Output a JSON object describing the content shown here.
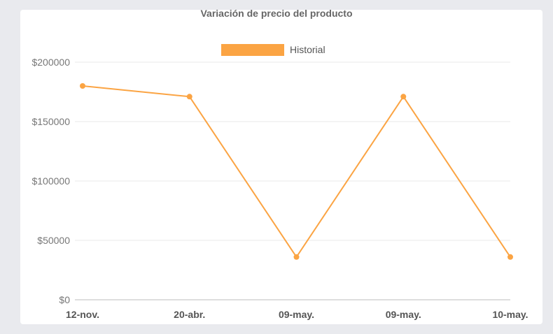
{
  "chart_data": {
    "type": "line",
    "title": "Variación de precio del producto",
    "categories": [
      "12-nov.",
      "20-abr.",
      "09-may.",
      "09-may.",
      "10-may."
    ],
    "series": [
      {
        "name": "Historial",
        "values": [
          180000,
          171000,
          36000,
          171000,
          36000
        ],
        "color": "#fba443"
      }
    ],
    "y_ticks": [
      "$0",
      "$50000",
      "$100000",
      "$150000",
      "$200000"
    ],
    "ylim": [
      0,
      200000
    ],
    "grid": true,
    "legend_position": "top-center"
  }
}
